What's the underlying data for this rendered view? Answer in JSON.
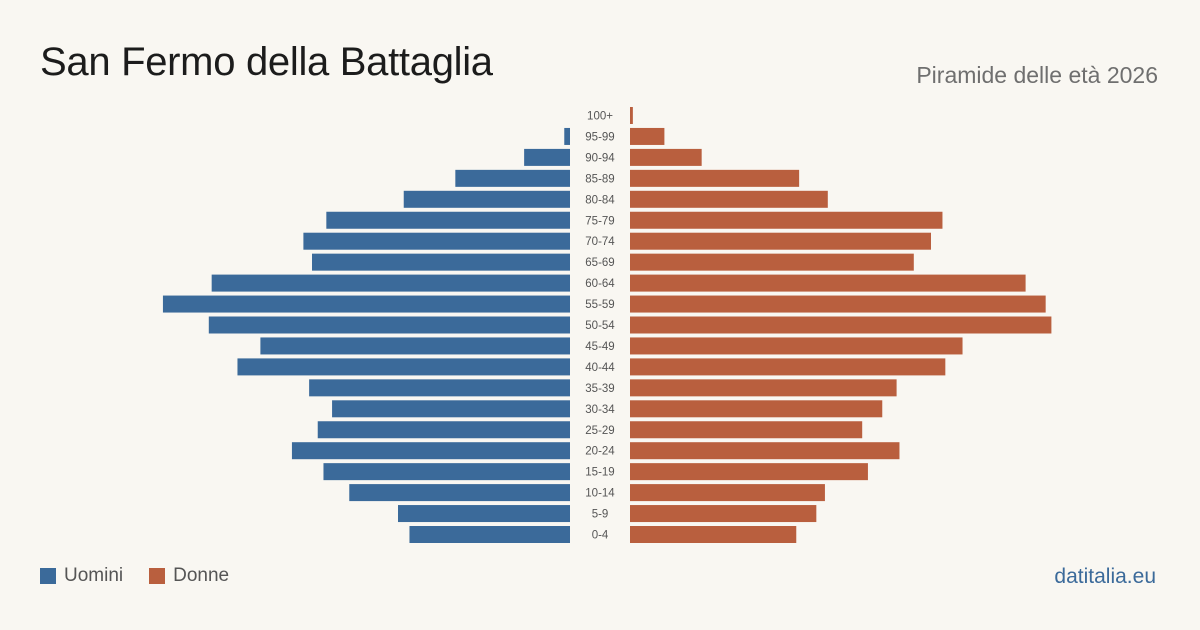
{
  "title": "San Fermo della Battaglia",
  "subtitle": "Piramide delle età 2026",
  "brand": "datitalia.eu",
  "colors": {
    "men": "#3b6a9a",
    "women": "#b95f3e",
    "background": "#f9f7f2"
  },
  "legend": [
    {
      "label": "Uomini",
      "color": "#3b6a9a"
    },
    {
      "label": "Donne",
      "color": "#b95f3e"
    }
  ],
  "chart_data": {
    "type": "bar",
    "orientation": "horizontal",
    "title": "San Fermo della Battaglia",
    "subtitle": "Piramide delle età 2026",
    "categories": [
      "100+",
      "95-99",
      "90-94",
      "85-89",
      "80-84",
      "75-79",
      "70-74",
      "65-69",
      "60-64",
      "55-59",
      "50-54",
      "45-49",
      "40-44",
      "35-39",
      "30-34",
      "25-29",
      "20-24",
      "15-19",
      "10-14",
      "5-9",
      "0-4"
    ],
    "series": [
      {
        "name": "Uomini",
        "values": [
          0,
          2,
          16,
          40,
          58,
          85,
          93,
          90,
          125,
          142,
          126,
          108,
          116,
          91,
          83,
          88,
          97,
          86,
          77,
          60,
          56
        ]
      },
      {
        "name": "Donne",
        "values": [
          1,
          12,
          25,
          59,
          69,
          109,
          105,
          99,
          138,
          145,
          147,
          116,
          110,
          93,
          88,
          81,
          94,
          83,
          68,
          65,
          58
        ]
      }
    ],
    "xlim": [
      0,
      150
    ],
    "grid": false,
    "legend_position": "bottom-left"
  }
}
